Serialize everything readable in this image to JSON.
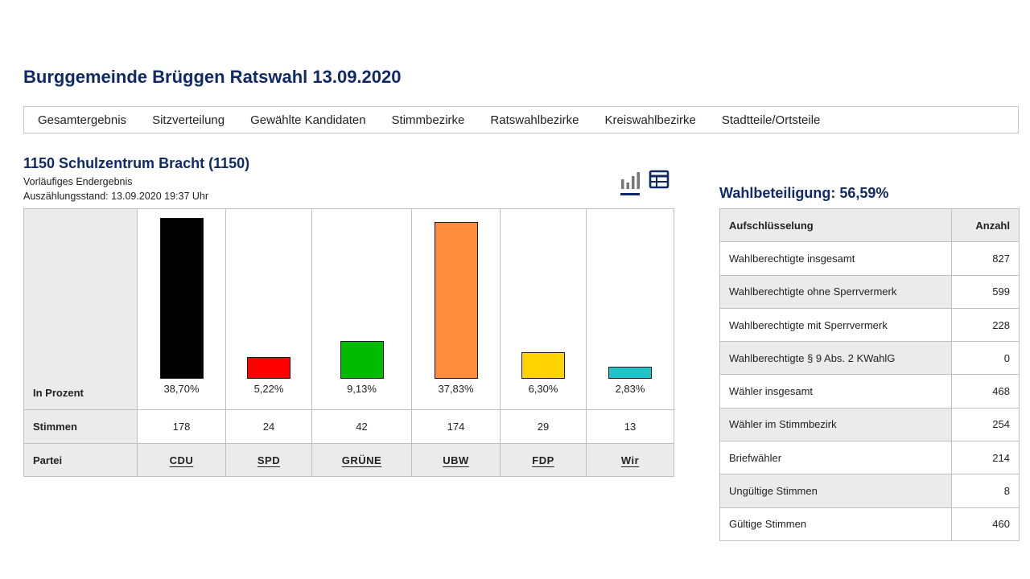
{
  "page_title": "Burggemeinde Brüggen Ratswahl 13.09.2020",
  "nav": [
    "Gesamtergebnis",
    "Sitzverteilung",
    "Gewählte Kandidaten",
    "Stimmbezirke",
    "Ratswahlbezirke",
    "Kreiswahlbezirke",
    "Stadtteile/Ortsteile"
  ],
  "section": {
    "title": "1150 Schulzentrum Bracht (1150)",
    "status": "Vorläufiges Endergebnis",
    "count_state": "Auszählungsstand: 13.09.2020 19:37 Uhr"
  },
  "view_icons": [
    "bar-chart-icon",
    "table-icon"
  ],
  "chart_data": {
    "type": "bar",
    "row_labels": {
      "percent": "In Prozent",
      "votes": "Stimmen",
      "party": "Partei"
    },
    "categories": [
      "CDU",
      "SPD",
      "GRÜNE",
      "UBW",
      "FDP",
      "Wir"
    ],
    "values": [
      38.7,
      5.22,
      9.13,
      37.83,
      6.3,
      2.83
    ],
    "value_labels": [
      "38,70%",
      "5,22%",
      "9,13%",
      "37,83%",
      "6,30%",
      "2,83%"
    ],
    "votes": [
      "178",
      "24",
      "42",
      "174",
      "29",
      "13"
    ],
    "colors": [
      "#000000",
      "#ff0000",
      "#00bb00",
      "#ff8c3a",
      "#ffd400",
      "#22c3c8"
    ]
  },
  "turnout": {
    "title": "Wahlbeteiligung: 56,59%",
    "header": {
      "label": "Aufschlüsselung",
      "count": "Anzahl"
    },
    "rows": [
      {
        "label": "Wahlberechtigte insgesamt",
        "value": "827"
      },
      {
        "label": "Wahlberechtigte ohne Sperrvermerk",
        "value": "599"
      },
      {
        "label": "Wahlberechtigte mit Sperrvermerk",
        "value": "228"
      },
      {
        "label": "Wahlberechtigte § 9 Abs. 2 KWahlG",
        "value": "0"
      },
      {
        "label": "Wähler insgesamt",
        "value": "468"
      },
      {
        "label": "Wähler im Stimmbezirk",
        "value": "254"
      },
      {
        "label": "Briefwähler",
        "value": "214"
      },
      {
        "label": "Ungültige Stimmen",
        "value": "8"
      },
      {
        "label": "Gültige Stimmen",
        "value": "460"
      }
    ]
  }
}
